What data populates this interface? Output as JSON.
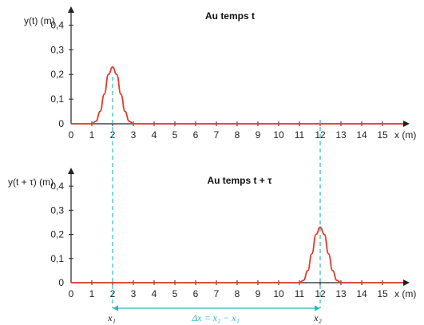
{
  "chart_data": [
    {
      "type": "line",
      "title": "Au temps t",
      "ylabel": "y(t) (m)",
      "xlabel": "x (m)",
      "xlim": [
        0,
        16
      ],
      "ylim": [
        0,
        0.45
      ],
      "x_ticks": [
        "0",
        "1",
        "2",
        "3",
        "4",
        "5",
        "6",
        "7",
        "8",
        "9",
        "10",
        "11",
        "12",
        "13",
        "14",
        "15"
      ],
      "y_ticks": [
        "0",
        "0,1",
        "0,2",
        "0,3",
        "0,4"
      ],
      "series": [
        {
          "color": "#e23a2c",
          "x": [
            0,
            1.0,
            1.2,
            1.4,
            1.6,
            1.8,
            2.0,
            2.2,
            2.4,
            2.6,
            2.8,
            3.0,
            16
          ],
          "y": [
            0,
            0.0,
            0.01,
            0.05,
            0.12,
            0.2,
            0.23,
            0.2,
            0.12,
            0.05,
            0.01,
            0.0,
            0
          ]
        }
      ],
      "marker": {
        "x": 2,
        "color": "#2bb7c4"
      }
    },
    {
      "type": "line",
      "title": "Au temps t + τ",
      "ylabel": "y(t + τ) (m)",
      "xlabel": "x (m)",
      "xlim": [
        0,
        16
      ],
      "ylim": [
        0,
        0.45
      ],
      "x_ticks": [
        "0",
        "1",
        "2",
        "3",
        "4",
        "5",
        "6",
        "7",
        "8",
        "9",
        "10",
        "11",
        "12",
        "13",
        "14",
        "15"
      ],
      "y_ticks": [
        "0",
        "0,1",
        "0,2",
        "0,3",
        "0,4"
      ],
      "series": [
        {
          "color": "#e23a2c",
          "x": [
            0,
            11.0,
            11.2,
            11.4,
            11.6,
            11.8,
            12.0,
            12.2,
            12.4,
            12.6,
            12.8,
            13.0,
            16
          ],
          "y": [
            0,
            0.0,
            0.01,
            0.05,
            0.12,
            0.2,
            0.23,
            0.2,
            0.12,
            0.05,
            0.01,
            0.0,
            0
          ]
        }
      ],
      "marker": {
        "x": 12,
        "color": "#2bb7c4"
      }
    }
  ],
  "annotations": {
    "x1_label": "x₁",
    "x2_label": "x₂",
    "delta_label": "Δx = x₂ − x₁",
    "delta_from": 2,
    "delta_to": 12,
    "color": "#2bb7c4"
  }
}
